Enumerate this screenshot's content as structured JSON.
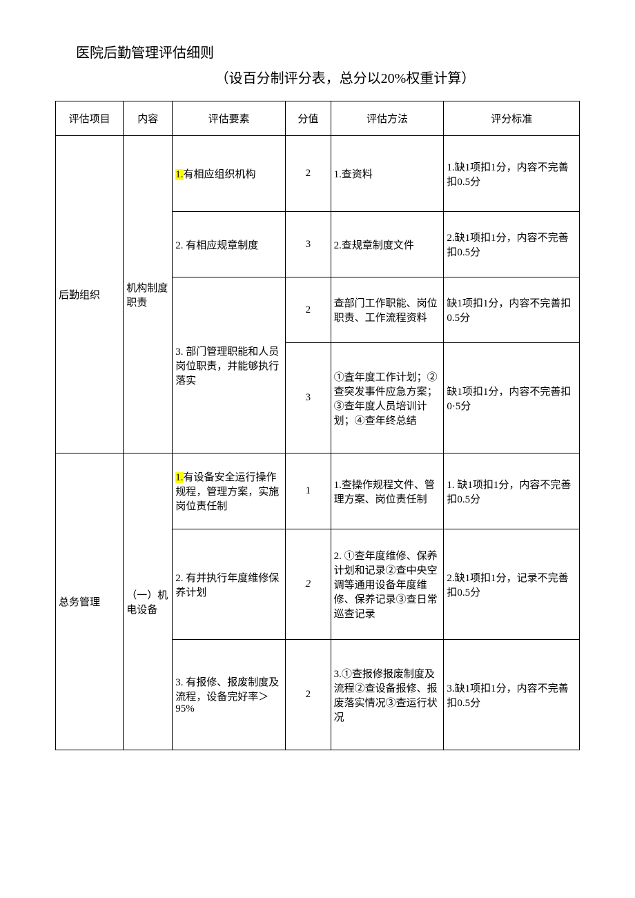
{
  "title": "医院后勤管理评估细则",
  "subtitle": "（设百分制评分表，总分以20%权重计算）",
  "colors": {
    "background": "#ffffff",
    "text": "#000000",
    "border": "#000000",
    "highlight": "#ffff00"
  },
  "fonts": {
    "family": "SimSun",
    "title_size": 20,
    "body_size": 15
  },
  "table": {
    "headers": {
      "project": "评估项目",
      "content": "内容",
      "element": "评估要素",
      "score": "分值",
      "method": "评估方法",
      "standard": "评分标准"
    },
    "column_widths": {
      "project": 90,
      "content": 65,
      "element": 150,
      "score": 60,
      "method": 150,
      "standard": 180
    },
    "sections": [
      {
        "project": "后勤组织",
        "content": "机构制度职责",
        "rows": [
          {
            "element_prefix": "1.",
            "element_prefix_highlighted": true,
            "element_rest": "有相应组织机构",
            "score": "2",
            "method": "1.查资料",
            "standard": "1.缺1项扣1分，内容不完善扣0.5分"
          },
          {
            "element": "2. 有相应规章制度",
            "score": "3",
            "method": "2.查规章制度文件",
            "standard": "2.缺1项扣1分，内容不完善扣0.5分"
          },
          {
            "element": "3. 部门管理职能和人员岗位职责，并能够执行落实",
            "element_rowspan": 2,
            "score": "2",
            "method": "查部门工作职能、岗位职责、工作流程资料",
            "standard": "缺1项扣1分，内容不完善扣0.5分"
          },
          {
            "score": "3",
            "method": "①査年度工作计划；②查突发事件应急方案；③查年度人员培训计划；④查年终总结",
            "standard": "缺1项扣1分，内容不完善扣0·5分"
          }
        ]
      },
      {
        "project": "总务管理",
        "content": "（一）机电设备",
        "rows": [
          {
            "element_prefix": "1.",
            "element_prefix_highlighted": true,
            "element_rest": "有设备安全运行操作规程，管理方案，实施岗位责任制",
            "score": "1",
            "method": "1.查操作规程文件、管理方案、岗位责任制",
            "standard": "1. 缺1项扣1分，内容不完善扣0.5分"
          },
          {
            "element": "2. 有并执行年度维修保养计划",
            "score": "2",
            "score_italic": true,
            "method": "2. ①查年度维修、保养计划和记录②查中央空调等通用设备年度维修、保养记录③查日常巡查记录",
            "standard": "2.缺1项扣1分，记录不完善扣0.5分"
          },
          {
            "element": "3. 有报修、报废制度及流程，设备完好率＞95%",
            "score": "2",
            "method": "3.①查报修报废制度及流程②查设备报修、报废落实情况③查运行状况",
            "standard": "3.缺1项扣1分，内容不完善扣0.5分"
          }
        ]
      }
    ]
  }
}
